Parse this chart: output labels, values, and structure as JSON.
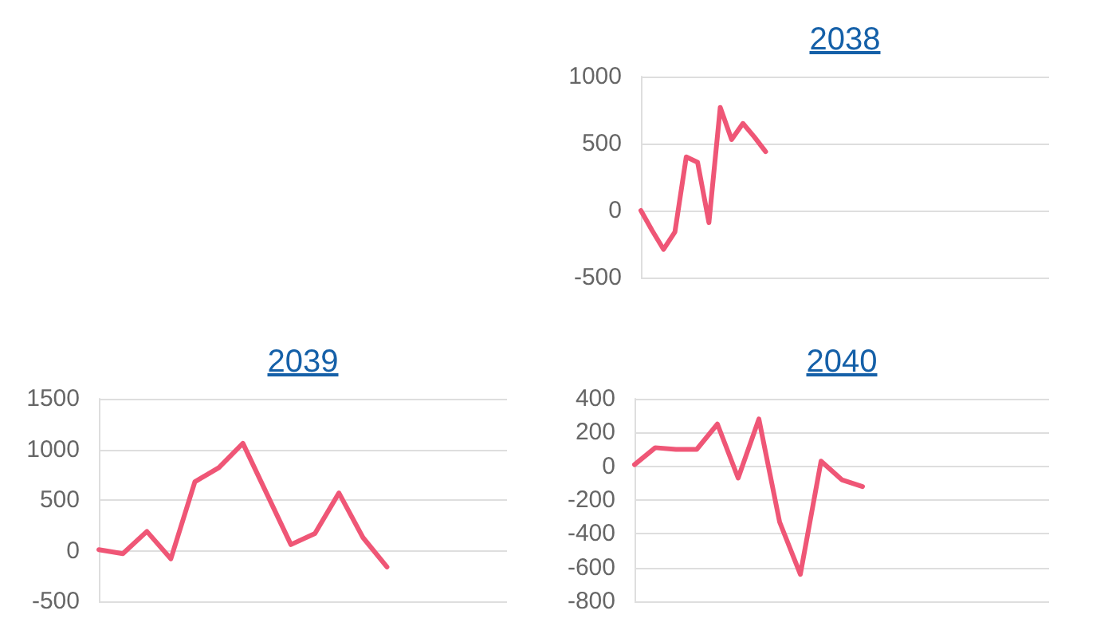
{
  "chart_data": [
    {
      "type": "line",
      "title": "2038",
      "categories": [
        null,
        null,
        null,
        null,
        null,
        null,
        null,
        null,
        null,
        null,
        null,
        null,
        null,
        null,
        null,
        null,
        null,
        null,
        null,
        null,
        null,
        null,
        null,
        null,
        null,
        null,
        null,
        null,
        null,
        null,
        null,
        null,
        null,
        null,
        null,
        null,
        null
      ],
      "values": [
        0,
        -150,
        -290,
        -160,
        400,
        360,
        -90,
        770,
        530,
        650,
        550,
        440,
        null,
        null,
        null,
        null,
        null,
        null,
        null,
        null,
        null,
        null,
        null,
        null,
        null,
        null,
        null,
        null,
        null,
        null,
        null,
        null,
        null,
        null,
        null,
        null,
        null
      ],
      "color": "#ef5676",
      "ylim": [
        -500,
        1000
      ],
      "yticks": [
        -500,
        0,
        500,
        1000
      ],
      "grid": "y",
      "tick_labels": "y",
      "marker": "none",
      "line_style": "solid"
    },
    {
      "type": "line",
      "title": "2039",
      "categories": [
        null,
        null,
        null,
        null,
        null,
        null,
        null,
        null,
        null,
        null,
        null,
        null,
        null,
        null,
        null,
        null,
        null,
        null
      ],
      "values": [
        10,
        -30,
        190,
        -80,
        680,
        820,
        1060,
        560,
        60,
        170,
        570,
        130,
        -160,
        null,
        null,
        null,
        null,
        null
      ],
      "color": "#ef5676",
      "ylim": [
        -500,
        1500
      ],
      "yticks": [
        -500,
        0,
        500,
        1000,
        1500
      ],
      "grid": "y",
      "tick_labels": "y",
      "marker": "none",
      "line_style": "solid"
    },
    {
      "type": "line",
      "title": "2040",
      "categories": [
        null,
        null,
        null,
        null,
        null,
        null,
        null,
        null,
        null,
        null,
        null,
        null,
        null,
        null,
        null,
        null,
        null,
        null,
        null,
        null,
        null
      ],
      "values": [
        10,
        110,
        100,
        100,
        250,
        -70,
        280,
        -330,
        -640,
        30,
        -80,
        -120,
        null,
        null,
        null,
        null,
        null,
        null,
        null,
        null,
        null
      ],
      "color": "#ef5676",
      "ylim": [
        -800,
        400
      ],
      "yticks": [
        -800,
        -600,
        -400,
        -200,
        0,
        200,
        400
      ],
      "grid": "y",
      "tick_labels": "y",
      "marker": "none",
      "line_style": "solid"
    }
  ]
}
